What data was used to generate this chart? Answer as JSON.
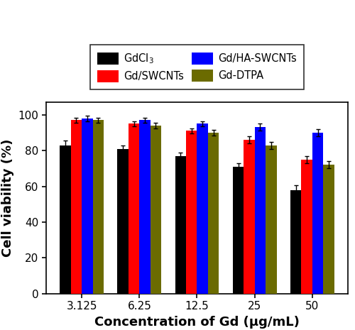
{
  "categories": [
    "3.125",
    "6.25",
    "12.5",
    "25",
    "50"
  ],
  "series": {
    "GdCl3": {
      "values": [
        83,
        81,
        77,
        71,
        58
      ],
      "errors": [
        2.5,
        2,
        2,
        2,
        2.5
      ],
      "color": "#000000"
    },
    "Gd/SWCNTs": {
      "values": [
        97,
        95,
        91,
        86,
        75
      ],
      "errors": [
        1.5,
        1.5,
        1.5,
        2,
        2
      ],
      "color": "#ff0000"
    },
    "Gd/HA-SWCNTs": {
      "values": [
        98,
        97,
        95,
        93,
        90
      ],
      "errors": [
        1.5,
        1.5,
        1.5,
        2,
        2
      ],
      "color": "#0000ff"
    },
    "Gd-DTPA": {
      "values": [
        97,
        94,
        90,
        83,
        72
      ],
      "errors": [
        1.5,
        1.5,
        1.5,
        2,
        2
      ],
      "color": "#6b6b00"
    }
  },
  "series_order": [
    "GdCl3",
    "Gd/SWCNTs",
    "Gd/HA-SWCNTs",
    "Gd-DTPA"
  ],
  "legend_labels": {
    "GdCl3": "GdCl$_3$",
    "Gd/SWCNTs": "Gd/SWCNTs",
    "Gd/HA-SWCNTs": "Gd/HA-SWCNTs",
    "Gd-DTPA": "Gd-DTPA"
  },
  "ylabel": "Cell viability (%)",
  "xlabel": "Concentration of Gd (μg/mL)",
  "ylim": [
    0,
    107
  ],
  "yticks": [
    0,
    20,
    40,
    60,
    80,
    100
  ],
  "bar_width": 0.19,
  "background_color": "#ffffff",
  "legend_ncol": 2,
  "axis_fontsize": 13,
  "tick_fontsize": 11,
  "legend_fontsize": 10.5
}
